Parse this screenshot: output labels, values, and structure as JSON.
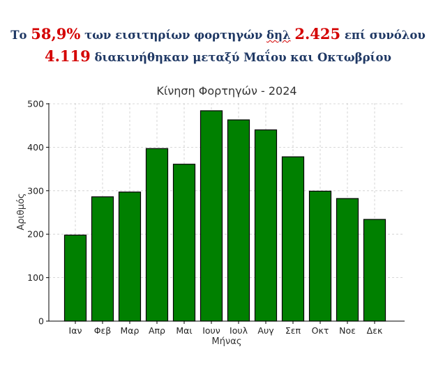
{
  "headline": {
    "line1_pre": "Το ",
    "pct": "58,9%",
    "line1_mid": " των εισιτηρίων φορτηγών ",
    "abbr": "δηλ",
    "line1_space": " ",
    "num1": "2.425",
    "line1_post": " επί συνόλου",
    "num2": "4.119",
    "line2_post": " διακινήθηκαν μεταξύ Μαΐου και Οκτωβρίου"
  },
  "colors": {
    "bar_fill": "#008000",
    "bar_stroke": "#000000",
    "headline_blue": "#1f3864",
    "highlight_red": "#d40000"
  },
  "chart_data": {
    "type": "bar",
    "title": "Κίνηση Φορτηγών - 2024",
    "xlabel": "Μήνας",
    "ylabel": "Αριθμός",
    "categories": [
      "Ιαν",
      "Φεβ",
      "Μαρ",
      "Απρ",
      "Μαι",
      "Ιουν",
      "Ιουλ",
      "Αυγ",
      "Σεπ",
      "Οκτ",
      "Νοε",
      "Δεκ"
    ],
    "values": [
      198,
      286,
      297,
      397,
      361,
      484,
      463,
      440,
      378,
      299,
      282,
      234
    ],
    "ylim": [
      0,
      500
    ],
    "yticks": [
      0,
      100,
      200,
      300,
      400,
      500
    ],
    "grid": true,
    "legend": "none"
  }
}
